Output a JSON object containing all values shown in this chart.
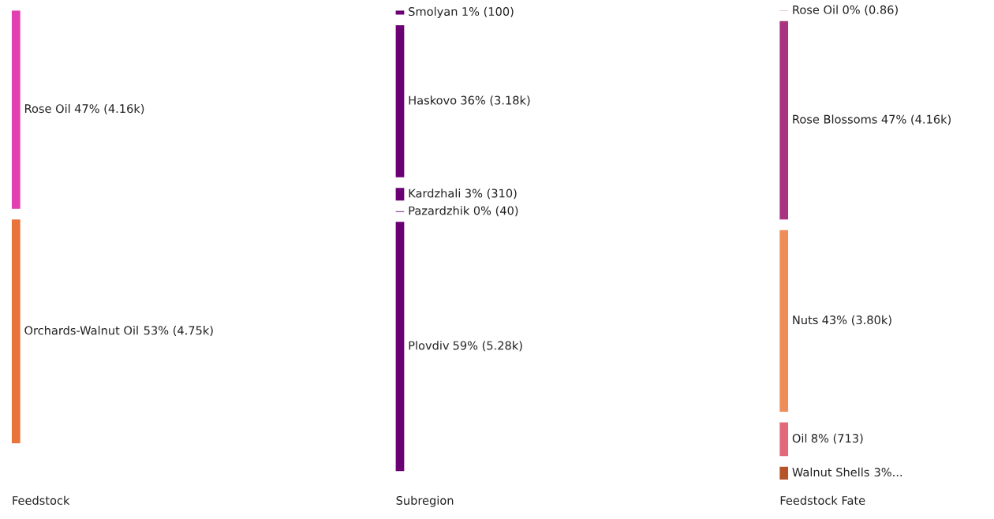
{
  "chart_data": {
    "type": "other",
    "categories": [
      "Rose Oil",
      "Orchards-Walnut Oil",
      "Smolyan",
      "Haskovo",
      "Kardzhali",
      "Pazardzhik",
      "Plovdiv",
      "Rose Oil",
      "Rose Blossoms",
      "Nuts",
      "Oil",
      "Walnut Shells"
    ],
    "series": [
      {
        "name": "Feedstock",
        "colors": [
          "#e040b0",
          "#e8743b",
          null,
          null,
          null,
          null,
          null,
          null,
          null,
          null,
          null,
          null
        ],
        "values": [
          47,
          53,
          null,
          null,
          null,
          null,
          null,
          null,
          null,
          null,
          null,
          null
        ],
        "value_labels": [
          "47% (4.16k)",
          "53% (4.75k)",
          null,
          null,
          null,
          null,
          null,
          null,
          null,
          null,
          null,
          null
        ]
      },
      {
        "name": "Subregion",
        "colors": [
          null,
          null,
          "#6a0073",
          "#6a0073",
          "#6a0073",
          "#6a0073",
          "#6a0073",
          null,
          null,
          null,
          null,
          null
        ],
        "values": [
          null,
          null,
          1,
          36,
          3,
          0,
          59,
          null,
          null,
          null,
          null,
          null
        ],
        "value_labels": [
          null,
          null,
          "1% (100)",
          "36% (3.18k)",
          "3% (310)",
          "0% (40)",
          "59% (5.28k)",
          null,
          null,
          null,
          null,
          null
        ]
      },
      {
        "name": "Feedstock Fate",
        "colors": [
          null,
          null,
          null,
          null,
          null,
          null,
          null,
          "#d9a0c8",
          "#a8337f",
          "#ee8d5a",
          "#e06a7a",
          "#b5532a"
        ],
        "values": [
          null,
          null,
          null,
          null,
          null,
          null,
          null,
          0,
          47,
          43,
          8,
          3
        ],
        "value_labels": [
          null,
          null,
          null,
          null,
          null,
          null,
          null,
          "0% (0.86)",
          "47% (4.16k)",
          "43% (3.80k)",
          "8% (713)",
          "3%..."
        ]
      }
    ]
  }
}
